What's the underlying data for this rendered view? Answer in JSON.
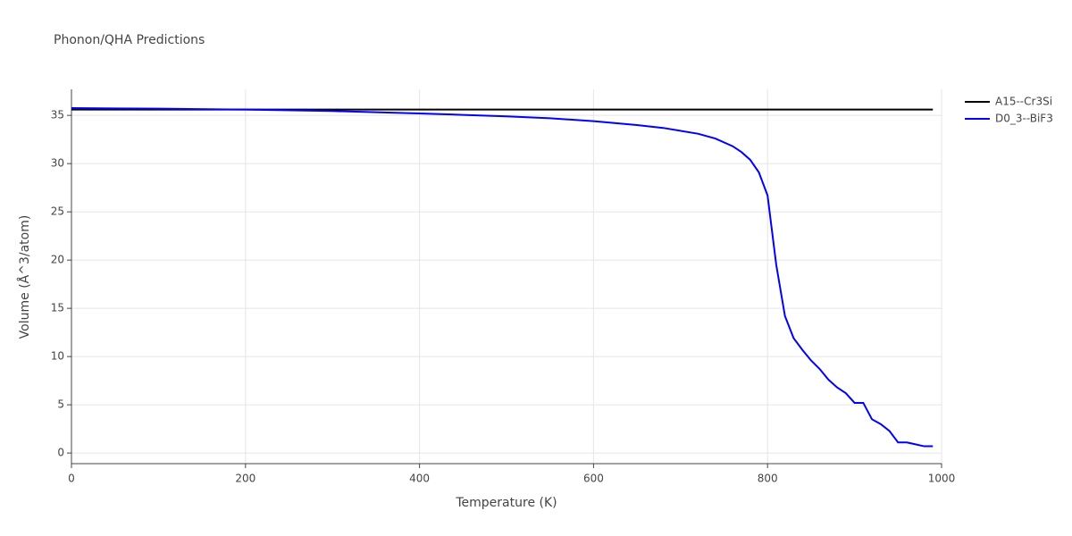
{
  "chart_data": {
    "type": "line",
    "title": "Phonon/QHA Predictions",
    "x_label": "Temperature (K)",
    "y_label": "Volume (Å^3/atom)",
    "xlim": [
      0,
      1000
    ],
    "xticks": [
      0,
      200,
      400,
      600,
      800,
      1000
    ],
    "ylim": [
      -1.1,
      37.7
    ],
    "yticks": [
      0,
      5,
      10,
      15,
      20,
      25,
      30,
      35
    ],
    "grid": true,
    "legend": "right",
    "series": [
      {
        "name": "A15--Cr3Si",
        "color": "#000000",
        "x": [
          0,
          990
        ],
        "values": [
          35.6,
          35.6
        ]
      },
      {
        "name": "D0_3--BiF3",
        "color": "#0000ff",
        "x": [
          0,
          100,
          200,
          300,
          400,
          450,
          500,
          550,
          600,
          650,
          680,
          720,
          740,
          760,
          770,
          780,
          790,
          800,
          810,
          820,
          830,
          840,
          850,
          860,
          870,
          880,
          890,
          900,
          910,
          920,
          930,
          940,
          950,
          960,
          970,
          980,
          990
        ],
        "values": [
          35.75,
          35.7,
          35.6,
          35.45,
          35.2,
          35.05,
          34.9,
          34.7,
          34.4,
          34.0,
          33.7,
          33.1,
          32.6,
          31.8,
          31.2,
          30.4,
          29.1,
          26.7,
          19.5,
          14.2,
          11.9,
          10.7,
          9.6,
          8.7,
          7.6,
          6.8,
          6.2,
          5.2,
          5.2,
          3.5,
          3.0,
          2.3,
          1.1,
          1.1,
          0.9,
          0.7,
          0.7
        ]
      }
    ]
  }
}
